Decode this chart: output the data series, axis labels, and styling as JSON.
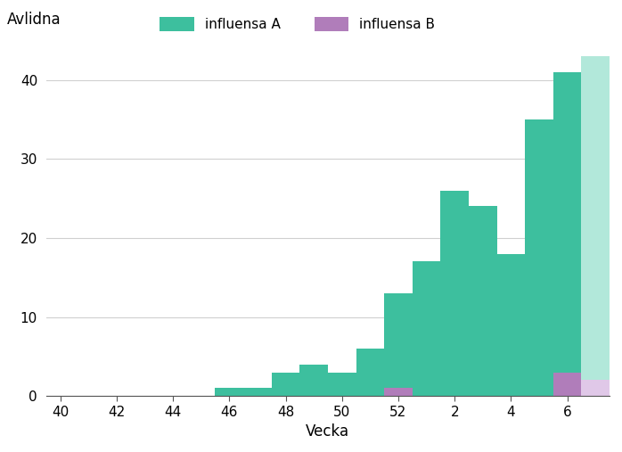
{
  "influensa_A": [
    0,
    0,
    0,
    0,
    0,
    0,
    1,
    1,
    3,
    4,
    3,
    6,
    13,
    17,
    26,
    24,
    18,
    35,
    41,
    43
  ],
  "influensa_B": [
    0,
    0,
    0,
    0,
    0,
    0,
    0,
    0,
    0,
    0,
    0,
    0,
    1,
    0,
    0,
    0,
    0,
    0,
    3,
    2
  ],
  "preliminary_index": 19,
  "color_A": "#3dbf9e",
  "color_A_light": "#b2e8da",
  "color_B": "#b07dba",
  "color_B_light": "#e0c8e8",
  "ylabel": "Avlidna",
  "xlabel": "Vecka",
  "legend_A": "influensa A",
  "legend_B": "influensa B",
  "ylim": [
    0,
    45
  ],
  "yticks": [
    0,
    10,
    20,
    30,
    40
  ],
  "tick_positions": [
    0,
    2,
    4,
    6,
    8,
    10,
    12,
    14,
    16,
    18
  ],
  "tick_labels": [
    "40",
    "42",
    "44",
    "46",
    "48",
    "50",
    "52",
    "2",
    "4",
    "6"
  ],
  "background_color": "#ffffff",
  "grid_color": "#d0d0d0"
}
